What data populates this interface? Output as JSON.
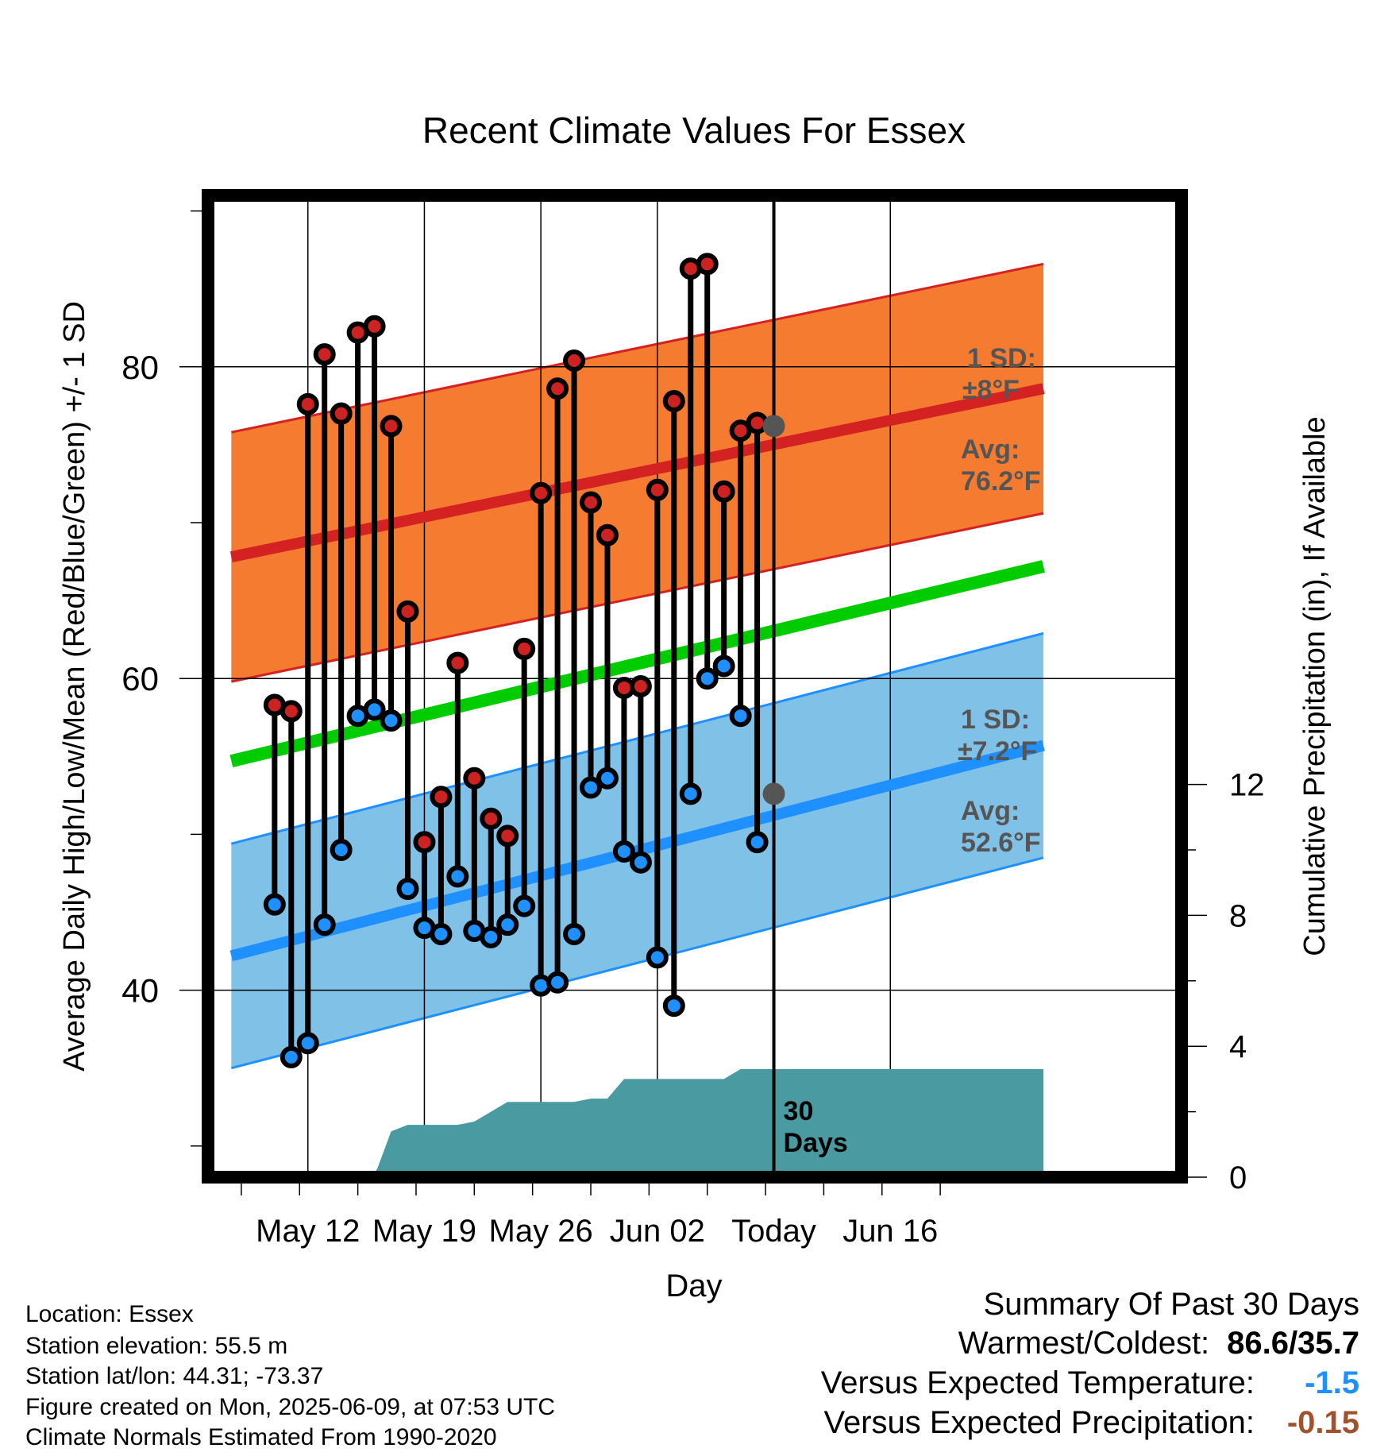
{
  "chart_data": {
    "type": "line",
    "title": "Recent Climate Values For Essex",
    "xlabel": "Day",
    "ylabel": "Average Daily High/Low/Mean (Red/Blue/Green) +/- 1 SD",
    "y2label": "Cumulative Precipitation (in), If Available",
    "ylim": [
      28,
      91
    ],
    "y2lim": [
      0,
      30
    ],
    "yticks": [
      40,
      60,
      80
    ],
    "y2ticks": [
      0,
      4,
      8,
      12
    ],
    "xlim": [
      -6,
      52.5
    ],
    "xticks": [
      {
        "x": 0,
        "label": "May 12"
      },
      {
        "x": 7,
        "label": "May 19"
      },
      {
        "x": 14,
        "label": "May 26"
      },
      {
        "x": 21,
        "label": "Jun 02"
      },
      {
        "x": 28,
        "label": "Today"
      },
      {
        "x": 35,
        "label": "Jun 16"
      }
    ],
    "days": [
      -2,
      -1,
      0,
      1,
      2,
      3,
      4,
      5,
      6,
      7,
      8,
      9,
      10,
      11,
      12,
      13,
      14,
      15,
      16,
      17,
      18,
      19,
      20,
      21,
      22,
      23,
      24,
      25,
      26,
      27
    ],
    "daily_high": [
      58.3,
      57.9,
      77.6,
      80.8,
      77.0,
      82.2,
      82.6,
      76.2,
      64.3,
      49.5,
      52.4,
      61.0,
      53.6,
      51.0,
      49.9,
      61.9,
      71.9,
      78.6,
      80.4,
      71.3,
      69.2,
      59.4,
      59.5,
      72.1,
      77.8,
      86.3,
      86.6,
      72.0,
      75.9,
      76.4
    ],
    "daily_low": [
      45.5,
      35.7,
      36.6,
      44.2,
      49.0,
      57.6,
      58.0,
      57.3,
      46.5,
      44.0,
      43.6,
      47.3,
      43.8,
      43.4,
      44.2,
      45.4,
      40.3,
      40.5,
      43.6,
      53.0,
      53.6,
      48.9,
      48.2,
      42.1,
      39.0,
      52.6,
      60.0,
      60.8,
      57.6,
      49.5
    ],
    "normal_mean": {
      "x": [
        -4.6,
        44.2
      ],
      "values": [
        54.7,
        67.2
      ]
    },
    "normal_high": {
      "x": [
        -4.6,
        44.2
      ],
      "values": [
        67.8,
        78.6
      ],
      "sd": 8.0
    },
    "normal_low": {
      "x": [
        -4.6,
        44.2
      ],
      "values": [
        42.2,
        55.7
      ],
      "sd": 7.2
    },
    "precip_cumulative": {
      "x": [
        -4.6,
        3.5,
        4.0,
        4.2,
        5.0,
        6.0,
        7.0,
        8.0,
        9.0,
        10.0,
        11.0,
        12.0,
        12.5,
        13.0,
        13.5,
        14.0,
        15.0,
        16.0,
        17.0,
        18.0,
        19.0,
        20.0,
        21.0,
        22.0,
        23.0,
        24.0,
        25.0,
        26.0,
        27.0,
        28.0,
        44.2
      ],
      "values": [
        0,
        0,
        0.1,
        0.3,
        1.4,
        1.6,
        1.6,
        1.6,
        1.6,
        1.7,
        2.0,
        2.3,
        2.3,
        2.3,
        2.3,
        2.3,
        2.3,
        2.3,
        2.4,
        2.4,
        3.0,
        3.0,
        3.0,
        3.0,
        3.0,
        3.0,
        3.0,
        3.3,
        3.3,
        3.3,
        3.3
      ]
    },
    "today": {
      "x": 28,
      "label_value": "30",
      "label_unit": "Days"
    },
    "annotations": {
      "high_sd": {
        "line1": "1 SD:",
        "line2": "±8°F",
        "avg_label": "Avg:",
        "avg_value": "76.2°F",
        "avg": 76.2
      },
      "low_sd": {
        "line1": "1 SD:",
        "line2": "±7.2°F",
        "avg_label": "Avg:",
        "avg_value": "52.6°F",
        "avg": 52.6
      }
    },
    "grid": true,
    "colors": {
      "high_band": "#f47b30",
      "high_line": "#d42121",
      "low_band": "#80c1e8",
      "low_line": "#1e90ff",
      "mean_line": "#00cc00",
      "precip": "#4a9aa2",
      "high_dot": "#cc2222",
      "low_dot": "#1e90ff",
      "annotation": "#555555"
    }
  },
  "info": {
    "location": "Location: Essex",
    "elevation": "Station elevation: 55.5 m",
    "latlon": "Station lat/lon: 44.31; -73.37",
    "created": "Figure created on Mon, 2025-06-09, at 07:53 UTC",
    "normals": "Climate Normals Estimated From 1990-2020"
  },
  "summary": {
    "title": "Summary Of Past 30 Days",
    "warmest_label": "Warmest/Coldest:",
    "warmest_value": "86.6/35.7",
    "temp_label": "Versus Expected Temperature:",
    "temp_value": "-1.5",
    "temp_color": "#1e90ff",
    "precip_label": "Versus Expected Precipitation:",
    "precip_value": "-0.15",
    "precip_color": "#a0522d"
  }
}
